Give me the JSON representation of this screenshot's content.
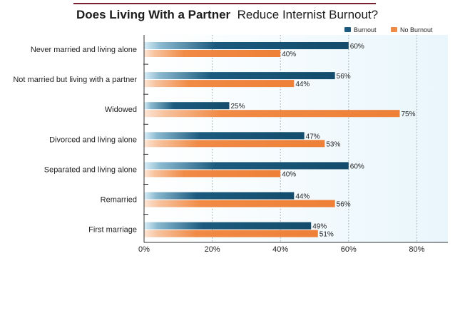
{
  "title_bold": "Does Living With a Partner",
  "title_rest": "Reduce Internist Burnout?",
  "chart_data": {
    "type": "bar",
    "orientation": "horizontal",
    "title": "Does Living With a Partner Reduce Internist Burnout?",
    "categories": [
      "Never married and living alone",
      "Not married but living with a partner",
      "Widowed",
      "Divorced and living alone",
      "Separated and living alone",
      "Remarried",
      "First marriage"
    ],
    "series": [
      {
        "name": "Burnout",
        "values": [
          60,
          56,
          25,
          47,
          60,
          44,
          49
        ],
        "labels": [
          "60%",
          "56%",
          "25%",
          "47%",
          "60%",
          "44%",
          "49%"
        ],
        "color": "#1b5a7e"
      },
      {
        "name": "No Burnout",
        "values": [
          40,
          44,
          75,
          53,
          40,
          56,
          51
        ],
        "labels": [
          "40%",
          "44%",
          "75%",
          "53%",
          "40%",
          "56%",
          "51%"
        ],
        "color": "#f08a45"
      }
    ],
    "x_ticks": [
      "0%",
      "20%",
      "40%",
      "60%",
      "80%"
    ],
    "xlim": [
      0,
      89
    ],
    "grid": true,
    "legend_position": "top-right",
    "colors": {
      "title_rule": "#7a1f2e",
      "plot_background": "#eef8fd",
      "grid": "#9aa7a7",
      "axis": "#333333"
    }
  }
}
